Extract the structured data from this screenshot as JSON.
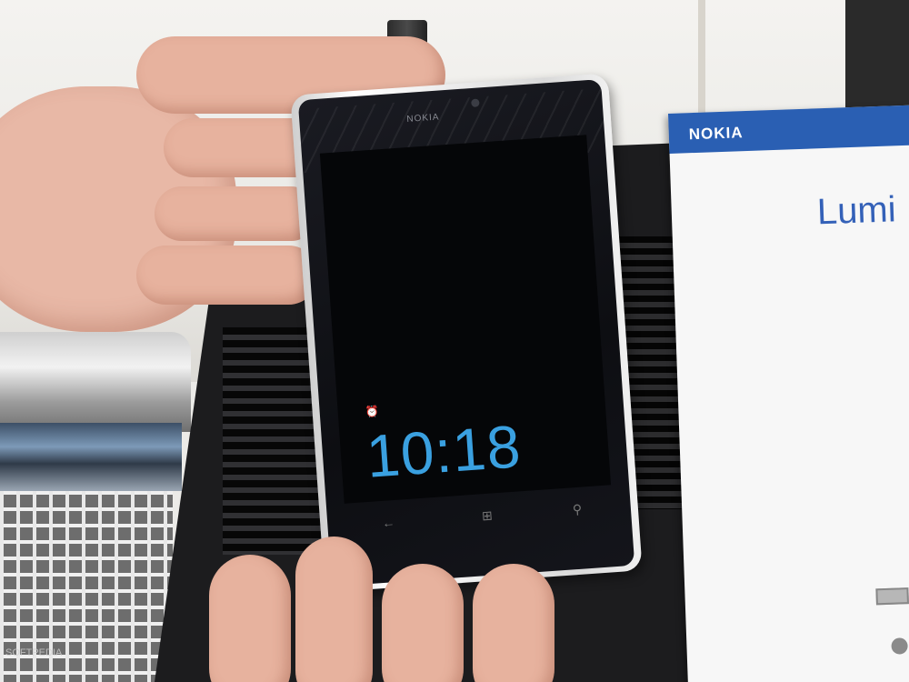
{
  "photo": {
    "subject": "",
    "phone": {
      "brand_text": "NOKIA",
      "lock_screen_time": "10:18",
      "accent_color": "#3aa0e0",
      "keys": {
        "back": "←",
        "start": "⊞",
        "search": "⚲"
      }
    },
    "info_card": {
      "logo": "NOKIA",
      "product_text": "Lumi",
      "header_color": "#2a5fb3"
    },
    "watermark": "SOFTPEDIA"
  }
}
